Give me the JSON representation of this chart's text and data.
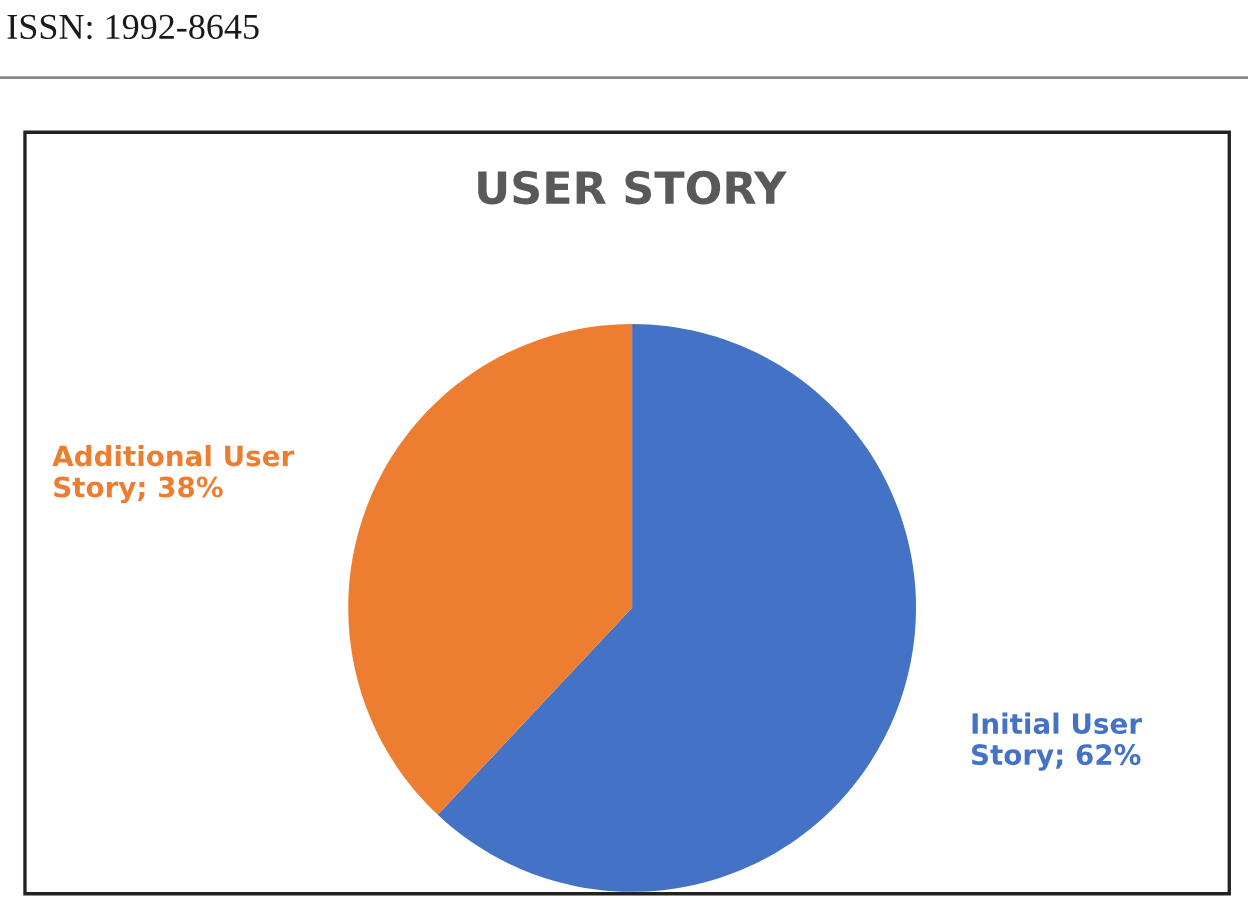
{
  "chart_data": {
    "type": "pie",
    "title": "USER STORY",
    "categories": [
      "Initial User Story",
      "Additional User Story"
    ],
    "values": [
      62,
      38
    ],
    "value_labels": [
      "62%",
      "38%"
    ],
    "colors": [
      "#4472c4",
      "#ed7d31"
    ],
    "legend": false,
    "annotations": [
      "ISSN: 1992-8645"
    ]
  }
}
